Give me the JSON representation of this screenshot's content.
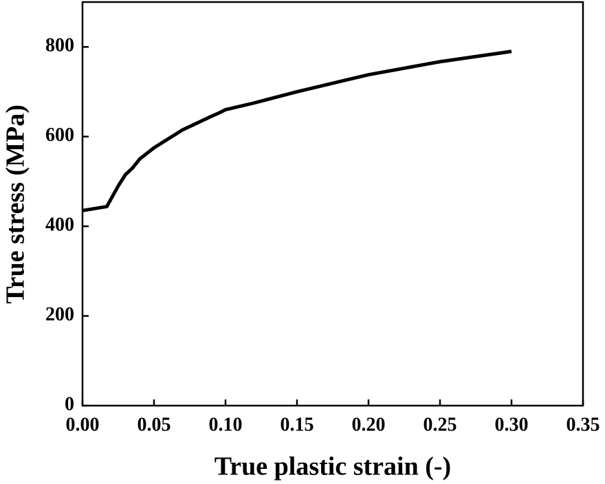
{
  "chart_data": {
    "type": "line",
    "x_label": "True plastic strain (-)",
    "y_label": "True stress (MPa)",
    "x": [
      0,
      0.017,
      0.025,
      0.03,
      0.035,
      0.04,
      0.05,
      0.06,
      0.07,
      0.08,
      0.09,
      0.095,
      0.1,
      0.12,
      0.15,
      0.2,
      0.25,
      0.3
    ],
    "series": [
      {
        "color": "#000000",
        "values": [
          435,
          444,
          490,
          515,
          530,
          550,
          575,
          595,
          615,
          630,
          645,
          652,
          660,
          675,
          700,
          738,
          767,
          790
        ]
      }
    ],
    "xlim": [
      0,
      0.35
    ],
    "xticks": [
      {
        "value": 0,
        "label": "0.00"
      },
      {
        "value": 0.05,
        "label": "0.05"
      },
      {
        "value": 0.1,
        "label": "0.10"
      },
      {
        "value": 0.15,
        "label": "0.15"
      },
      {
        "value": 0.2,
        "label": "0.20"
      },
      {
        "value": 0.25,
        "label": "0.25"
      },
      {
        "value": 0.3,
        "label": "0.30"
      },
      {
        "value": 0.35,
        "label": "0.35"
      }
    ],
    "ylim": [
      0,
      900
    ],
    "yticks": [
      0,
      200,
      400,
      600,
      800
    ],
    "grid": false
  }
}
